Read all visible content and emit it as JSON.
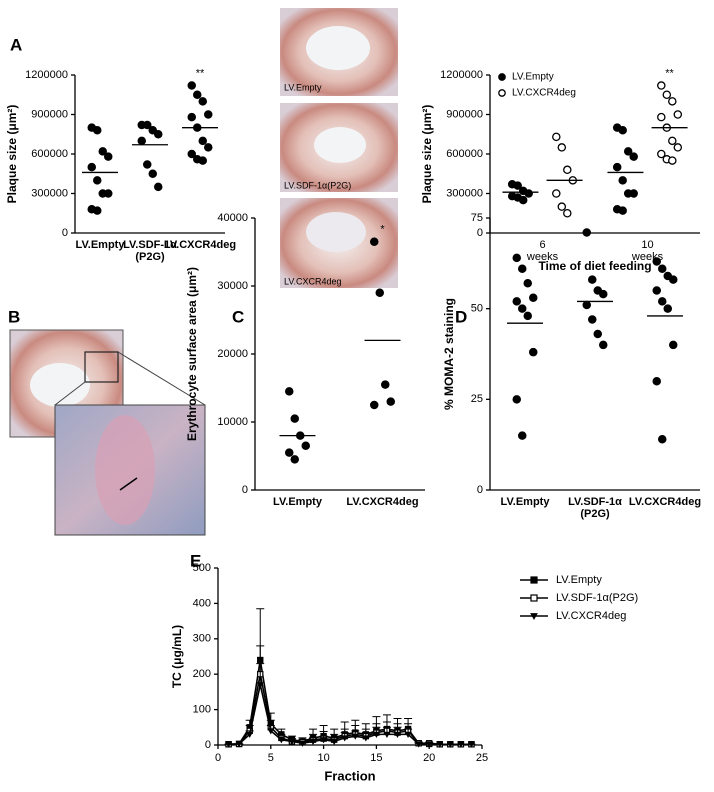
{
  "panel_labels": [
    "A",
    "B",
    "C",
    "D",
    "E"
  ],
  "images": [
    {
      "label": "LV.Empty"
    },
    {
      "label": "LV.SDF-1α(P2G)"
    },
    {
      "label": "LV.CXCR4deg"
    }
  ],
  "chart_data": [
    {
      "type": "dot",
      "ylabel": "Plaque size (μm²)",
      "categories": [
        "LV.Empty",
        "LV.SDF-1α (P2G)",
        "LV.CXCR4deg"
      ],
      "ylim": [
        0,
        1200000
      ],
      "yticks": [
        0,
        300000,
        600000,
        900000,
        1200000
      ],
      "series": [
        {
          "marker": "filled",
          "color": "#000000",
          "values": [
            [
              800000,
              780000,
              620000,
              580000,
              500000,
              400000,
              300000,
              300000,
              180000,
              170000
            ],
            [
              820000,
              820000,
              780000,
              750000,
              700000,
              520000,
              450000,
              350000
            ],
            [
              1120000,
              1050000,
              1000000,
              900000,
              880000,
              800000,
              700000,
              650000,
              600000,
              560000,
              550000
            ]
          ],
          "means": [
            460000,
            670000,
            800000
          ],
          "annotations": [
            null,
            null,
            "**"
          ]
        }
      ]
    },
    {
      "type": "dot",
      "ylabel": "Plaque size (μm²)",
      "xlabel": "Time of diet feeding",
      "categories": [
        "6 weeks",
        "10 weeks"
      ],
      "legend": "upper left",
      "ylim": [
        0,
        1200000
      ],
      "yticks": [
        0,
        300000,
        600000,
        900000,
        1200000
      ],
      "series": [
        {
          "name": "LV.Empty",
          "marker": "filled",
          "color": "#000000",
          "values": [
            [
              370000,
              360000,
              320000,
              300000,
              280000,
              270000,
              250000
            ],
            [
              800000,
              780000,
              620000,
              580000,
              500000,
              400000,
              300000,
              300000,
              180000,
              170000
            ]
          ],
          "means": [
            310000,
            460000
          ],
          "annotations": [
            null,
            null
          ]
        },
        {
          "name": "LV.CXCR4deg",
          "marker": "open",
          "color": "#000000",
          "values": [
            [
              730000,
              650000,
              480000,
              400000,
              300000,
              200000,
              150000
            ],
            [
              1120000,
              1050000,
              1000000,
              900000,
              880000,
              800000,
              700000,
              650000,
              600000,
              560000,
              550000
            ]
          ],
          "means": [
            400000,
            800000
          ],
          "annotations": [
            null,
            "**"
          ]
        }
      ]
    },
    {
      "type": "dot",
      "ylabel": "Erythrocyte surface area (μm²)",
      "categories": [
        "LV.Empty",
        "LV.CXCR4deg"
      ],
      "ylim": [
        0,
        40000
      ],
      "yticks": [
        0,
        10000,
        20000,
        30000,
        40000
      ],
      "series": [
        {
          "marker": "filled",
          "color": "#000000",
          "values": [
            [
              14500,
              10500,
              8000,
              6500,
              5500,
              4500
            ],
            [
              36500,
              29000,
              15500,
              13000,
              12500
            ]
          ],
          "means": [
            8000,
            22000
          ],
          "annotations": [
            null,
            "*"
          ]
        }
      ]
    },
    {
      "type": "dot",
      "ylabel": "% MOMA-2 staining",
      "categories": [
        "LV.Empty",
        "LV.SDF-1α (P2G)",
        "LV.CXCR4deg"
      ],
      "ylim": [
        0,
        75
      ],
      "yticks": [
        0,
        25,
        50,
        75
      ],
      "series": [
        {
          "marker": "filled",
          "color": "#000000",
          "values": [
            [
              64,
              61,
              57,
              53,
              52,
              50,
              48,
              38,
              25,
              15
            ],
            [
              71,
              58,
              55,
              54,
              51,
              47,
              43,
              40
            ],
            [
              63,
              61,
              59,
              58,
              55,
              52,
              50,
              40,
              30,
              14
            ]
          ],
          "means": [
            46,
            52,
            48
          ],
          "annotations": [
            null,
            null,
            null
          ]
        }
      ]
    },
    {
      "type": "line",
      "xlabel": "Fraction",
      "ylabel": "TC (μg/mL)",
      "legend": "right",
      "x": [
        1,
        2,
        3,
        4,
        5,
        6,
        7,
        8,
        9,
        10,
        11,
        12,
        13,
        14,
        15,
        16,
        17,
        18,
        19,
        20,
        21,
        22,
        23,
        24
      ],
      "xlim": [
        0,
        25
      ],
      "xticks": [
        0,
        5,
        10,
        15,
        20,
        25
      ],
      "ylim": [
        0,
        500
      ],
      "yticks": [
        0,
        100,
        200,
        300,
        400,
        500
      ],
      "series": [
        {
          "name": "LV.Empty",
          "marker": "square-filled",
          "color": "#000000",
          "values": [
            2,
            3,
            50,
            240,
            60,
            30,
            15,
            10,
            20,
            25,
            20,
            30,
            35,
            30,
            40,
            45,
            40,
            45,
            5,
            3,
            2,
            2,
            2,
            2
          ],
          "errors": [
            0,
            0,
            20,
            145,
            30,
            15,
            10,
            10,
            25,
            30,
            25,
            35,
            35,
            30,
            40,
            40,
            35,
            30,
            3,
            0,
            0,
            0,
            0,
            0
          ]
        },
        {
          "name": "LV.SDF-1α(P2G)",
          "marker": "square-open",
          "color": "#000000",
          "values": [
            2,
            3,
            40,
            200,
            50,
            20,
            10,
            8,
            15,
            18,
            15,
            25,
            30,
            25,
            35,
            40,
            35,
            40,
            5,
            5,
            2,
            2,
            2,
            2
          ],
          "errors": [
            0,
            0,
            15,
            80,
            20,
            10,
            8,
            8,
            15,
            20,
            15,
            20,
            25,
            20,
            25,
            25,
            25,
            20,
            3,
            3,
            0,
            0,
            0,
            0
          ]
        },
        {
          "name": "LV.CXCR4deg",
          "marker": "triangle-down",
          "color": "#000000",
          "values": [
            2,
            3,
            30,
            170,
            40,
            15,
            10,
            5,
            10,
            15,
            10,
            20,
            25,
            20,
            30,
            30,
            30,
            30,
            3,
            3,
            2,
            2,
            2,
            2
          ],
          "errors": [
            0,
            0,
            10,
            60,
            15,
            8,
            5,
            5,
            10,
            10,
            10,
            15,
            15,
            15,
            20,
            20,
            20,
            15,
            2,
            2,
            0,
            0,
            0,
            0
          ]
        }
      ]
    }
  ]
}
